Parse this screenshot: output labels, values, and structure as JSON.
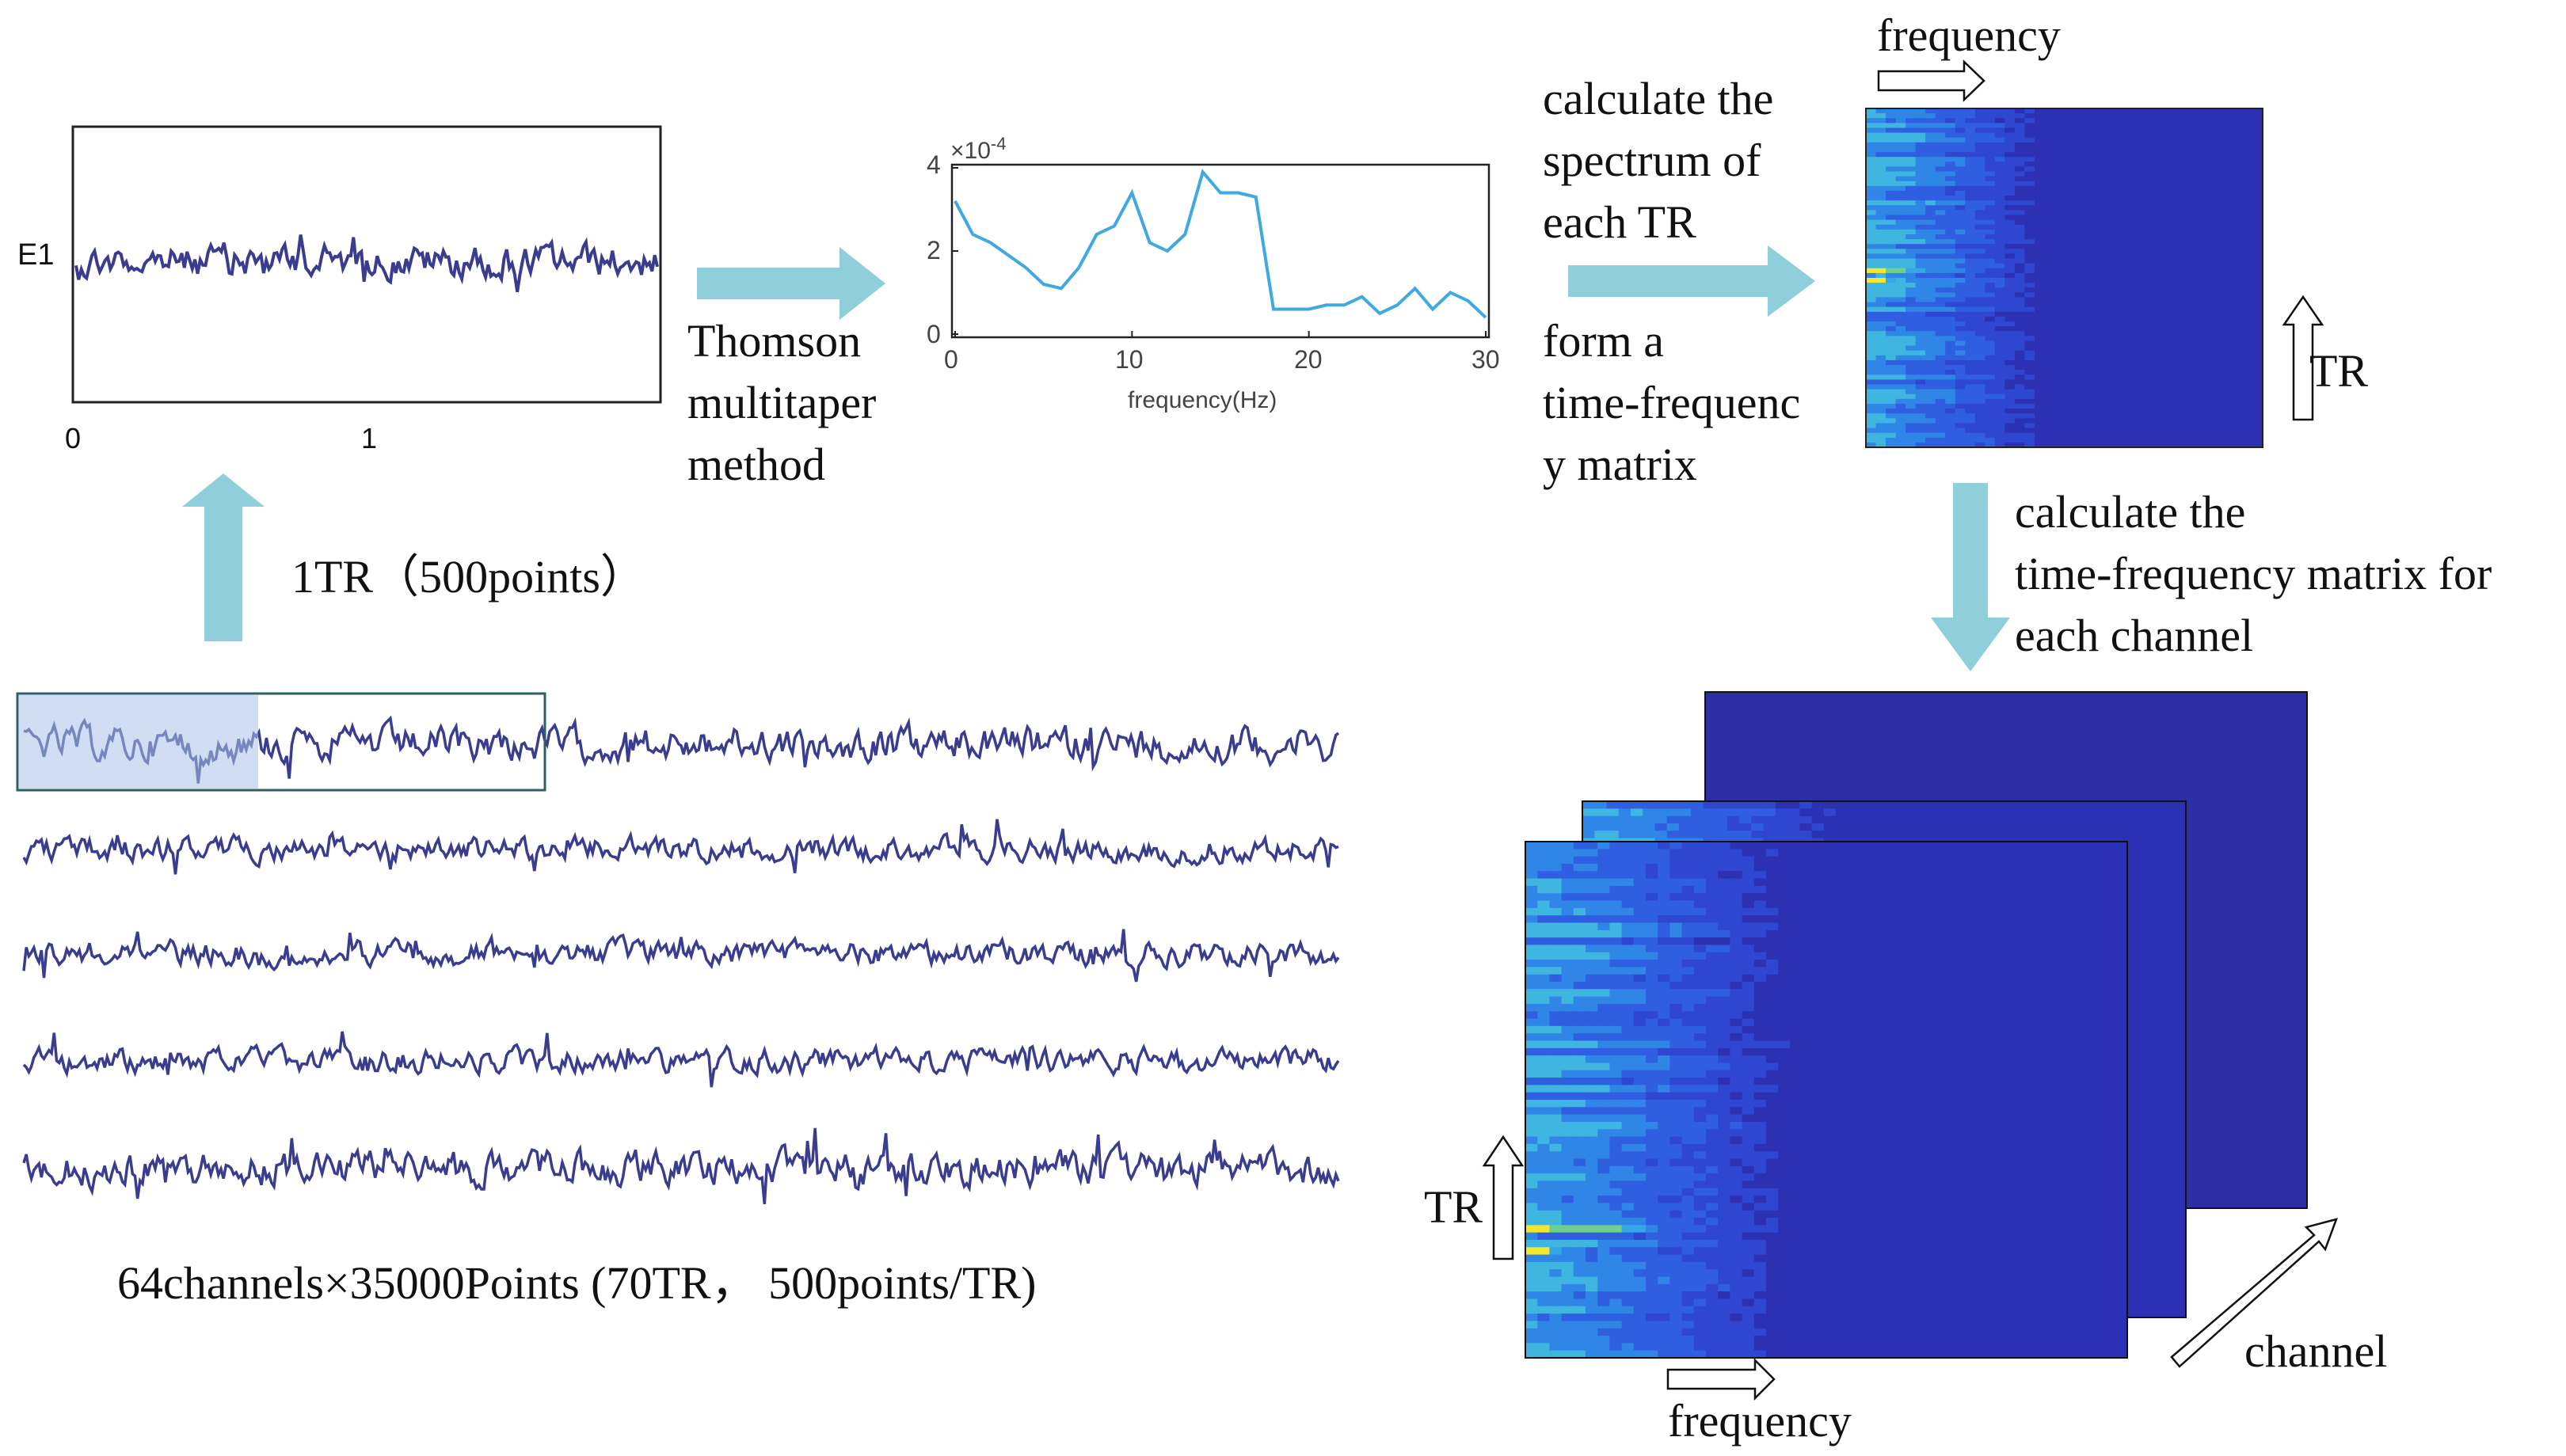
{
  "eeg_plot": {
    "channel_label": "E1",
    "x_ticks": [
      "0",
      "1"
    ]
  },
  "tr_arrow_label": "1TR（500points）",
  "method_label": [
    "Thomson",
    "multitaper",
    "method"
  ],
  "spectrum_plot": {
    "y_exponent": "×10",
    "y_exponent_power": "-4",
    "y_ticks": [
      "4",
      "2",
      "0"
    ],
    "x_ticks": [
      "0",
      "10",
      "20",
      "30"
    ],
    "x_label": "frequency(Hz)"
  },
  "step_label_1": [
    "calculate the",
    "spectrum of",
    "each TR"
  ],
  "step_label_2": [
    "form a",
    "time-frequenc",
    "y matrix"
  ],
  "tf_top": {
    "freq_label": "frequency",
    "tr_label": "TR"
  },
  "step_label_3": [
    "calculate the",
    "time-frequency matrix for",
    "each channel"
  ],
  "caption": "64channels×35000Points (70TR， 500points/TR)",
  "stack": {
    "tr_label": "TR",
    "freq_label": "frequency",
    "channel_label": "channel"
  },
  "colors": {
    "arrow": "#8ecfdb",
    "trace": "#3a3d8f",
    "spectrum": "#3fa9e0",
    "heat_base": "#2a2bb0"
  },
  "chart_data": {
    "type": "line",
    "title": "",
    "xlabel": "frequency(Hz)",
    "ylabel": "",
    "xlim": [
      0,
      30
    ],
    "ylim": [
      0,
      4
    ],
    "y_scale_note": "x10^-4",
    "x": [
      0,
      1,
      2,
      3,
      4,
      5,
      6,
      7,
      8,
      9,
      10,
      11,
      12,
      13,
      14,
      15,
      16,
      17,
      18,
      19,
      20,
      21,
      22,
      23,
      24,
      25,
      26,
      27,
      28,
      29,
      30
    ],
    "values": [
      3.2,
      2.4,
      2.2,
      1.9,
      1.6,
      1.2,
      1.1,
      1.6,
      2.4,
      2.6,
      3.4,
      2.2,
      2.0,
      2.4,
      3.9,
      3.4,
      3.4,
      3.3,
      0.6,
      0.6,
      0.6,
      0.7,
      0.7,
      0.9,
      0.5,
      0.7,
      1.1,
      0.6,
      1.0,
      0.8,
      0.4
    ]
  }
}
